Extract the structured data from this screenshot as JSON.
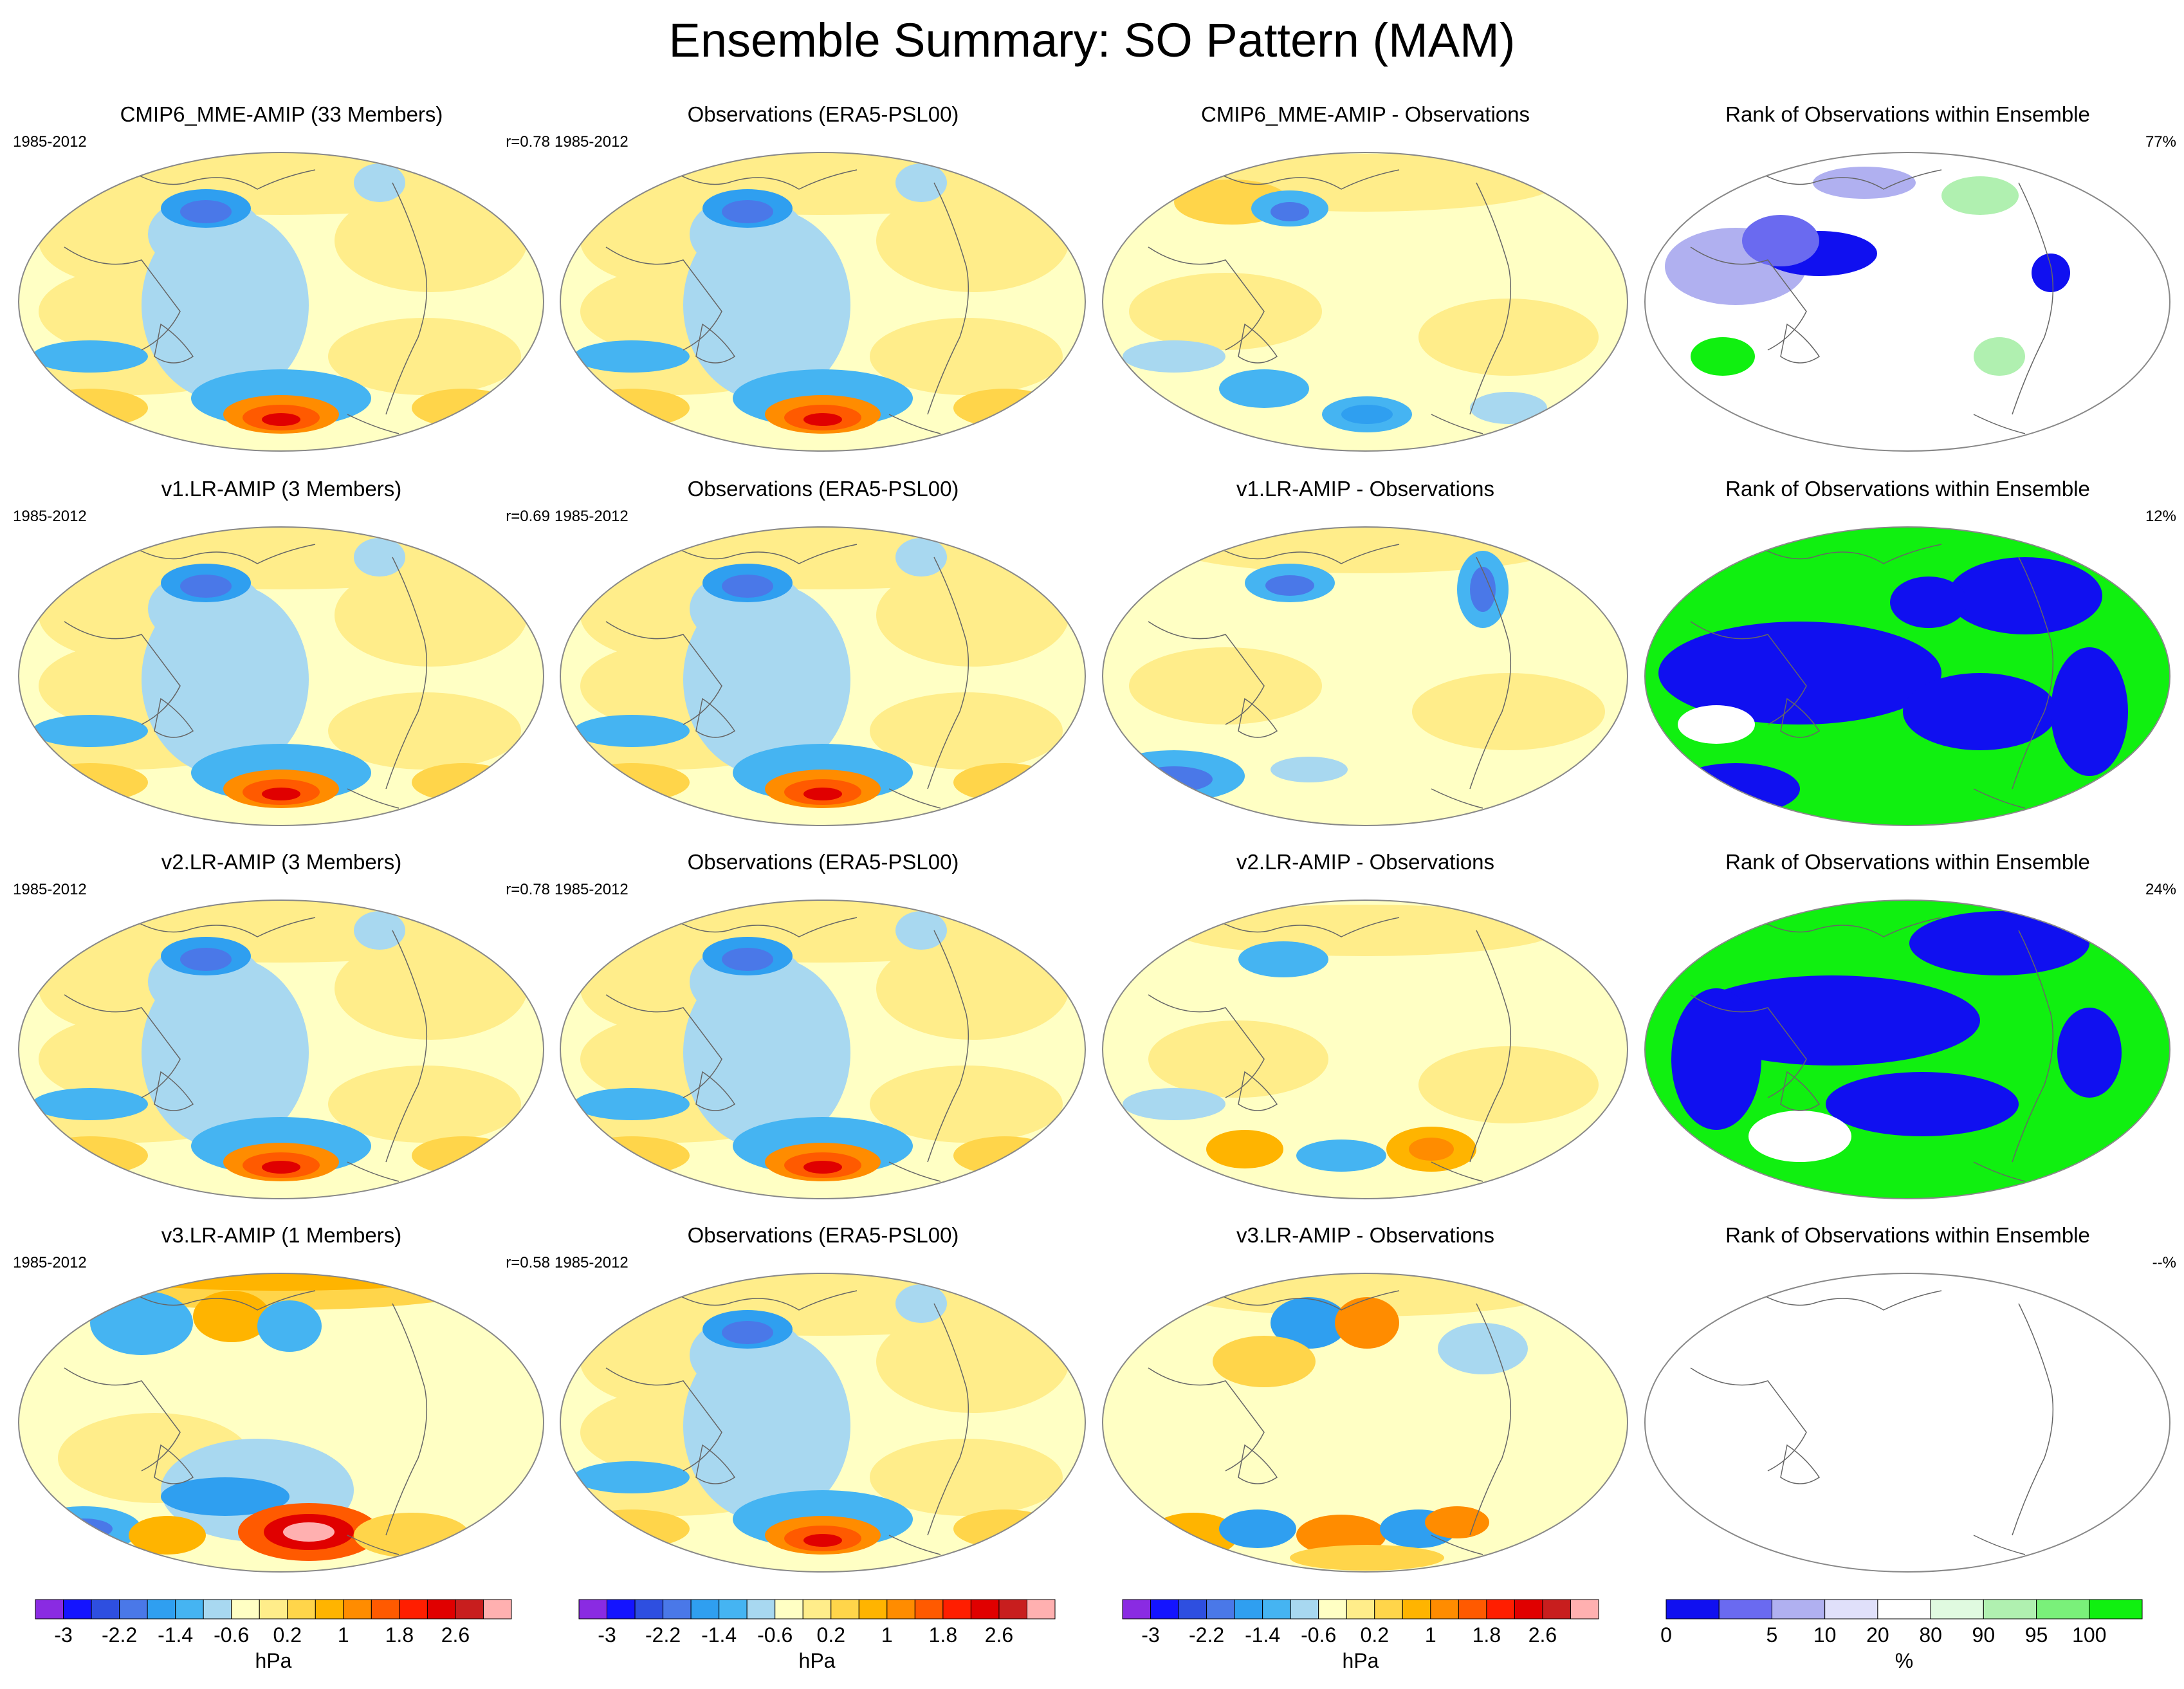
{
  "title": "Ensemble Summary: SO Pattern (MAM)",
  "period": "1985-2012",
  "rows": [
    {
      "model": "CMIP6_MME-AMIP (33 Members)",
      "r": "r=0.78",
      "obs": "Observations (ERA5-PSL00)",
      "diff": "CMIP6_MME-AMIP - Observations",
      "rank": "Rank of Observations within Ensemble",
      "rank_pct": "77%"
    },
    {
      "model": "v1.LR-AMIP (3 Members)",
      "r": "r=0.69",
      "obs": "Observations (ERA5-PSL00)",
      "diff": "v1.LR-AMIP - Observations",
      "rank": "Rank of Observations within Ensemble",
      "rank_pct": "12%"
    },
    {
      "model": "v2.LR-AMIP (3 Members)",
      "r": "r=0.78",
      "obs": "Observations (ERA5-PSL00)",
      "diff": "v2.LR-AMIP - Observations",
      "rank": "Rank of Observations within Ensemble",
      "rank_pct": "24%"
    },
    {
      "model": "v3.LR-AMIP (1 Members)",
      "r": "r=0.58",
      "obs": "Observations (ERA5-PSL00)",
      "diff": "v3.LR-AMIP - Observations",
      "rank": "Rank of Observations within Ensemble",
      "rank_pct": "--%"
    }
  ],
  "chart_data": {
    "type": "heatmap",
    "projection": "Robinson (global, Pacific-centered)",
    "variable": "SO pattern sea-level pressure regression",
    "season": "MAM",
    "pressure_colorbar": {
      "unit": "hPa",
      "tick_labels": [
        "-3",
        "-2.2",
        "-1.4",
        "-0.6",
        "0.2",
        "1",
        "1.8",
        "2.6"
      ],
      "colors": [
        "#8a2be2",
        "#1414ff",
        "#2e4fe0",
        "#4a78e8",
        "#2f9ff0",
        "#45b4f2",
        "#a8d8f0",
        "#ffffc4",
        "#ffed8a",
        "#ffd54a",
        "#ffb400",
        "#ff8c00",
        "#ff5a00",
        "#ff1e00",
        "#e00000",
        "#c81e1e",
        "#ffb0b0"
      ]
    },
    "rank_colorbar": {
      "unit": "%",
      "tick_labels": [
        "0",
        "5",
        "10",
        "20",
        "80",
        "90",
        "95",
        "100"
      ],
      "colors": [
        "#1010f0",
        "#6a6af0",
        "#b0b0f0",
        "#e0e0fa",
        "#ffffff",
        "#e0fae0",
        "#b0f0b0",
        "#7af07a",
        "#10f010"
      ]
    }
  }
}
